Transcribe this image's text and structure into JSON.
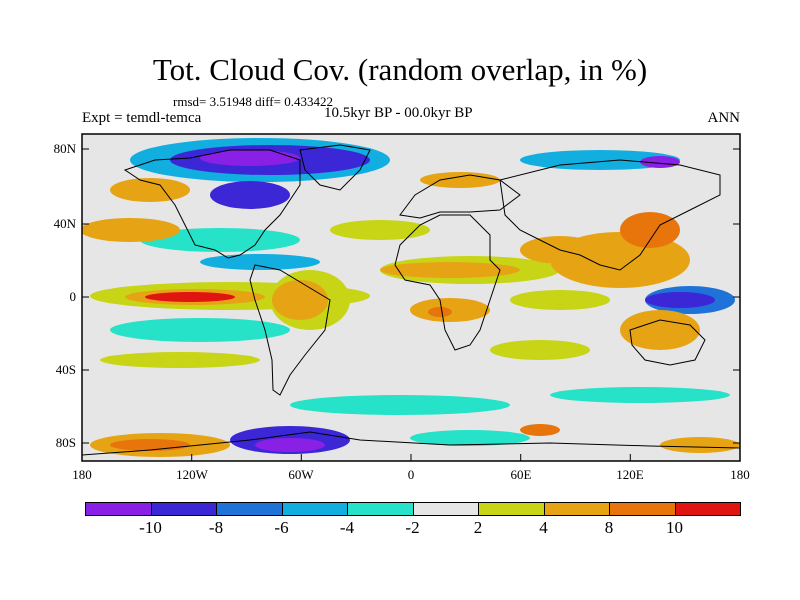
{
  "title": "Tot. Cloud Cov. (random overlap, in %)",
  "stats_text": "rmsd= 3.51948 diff= 0.433422",
  "expt_label": "Expt = temdl-temca",
  "period_label": "10.5kyr BP - 00.0kyr BP",
  "season_label": "ANN",
  "lat_labels": [
    "80N",
    "40N",
    "0",
    "40S",
    "80S"
  ],
  "lon_labels": [
    "180",
    "120W",
    "60W",
    "0",
    "60E",
    "120E",
    "180"
  ],
  "colorbar": {
    "levels": [
      "-10",
      "-8",
      "-6",
      "-4",
      "-2",
      "2",
      "4",
      "8",
      "10"
    ],
    "colors": [
      "#8a1fe6",
      "#3c27d6",
      "#1e72d8",
      "#12aee0",
      "#26e2c8",
      "#e6e6e6",
      "#c8d416",
      "#e6a414",
      "#e8740c",
      "#e01410"
    ]
  },
  "colors": {
    "ocean_background": "#e6e6e6",
    "coastline": "#000000"
  }
}
